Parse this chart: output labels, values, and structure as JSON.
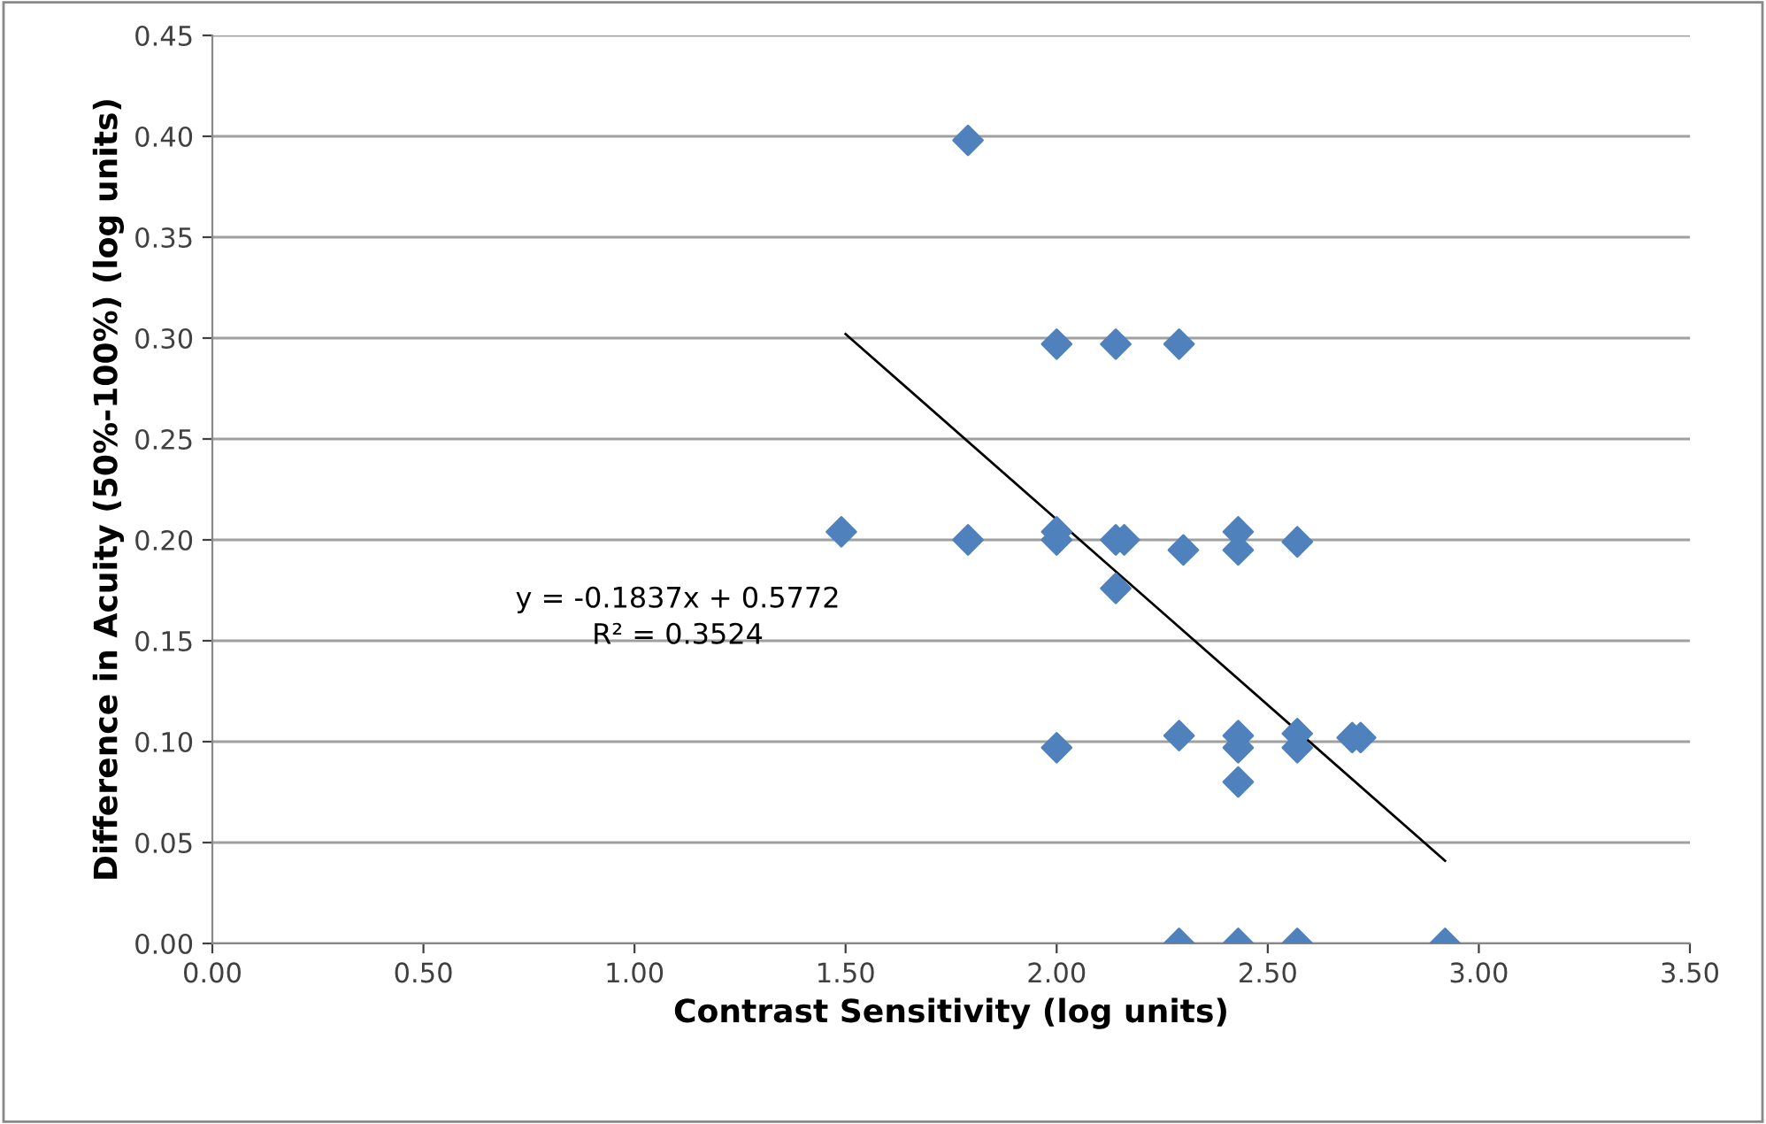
{
  "chart_data": {
    "type": "scatter",
    "xlabel": "Contrast Sensitivity (log units)",
    "ylabel": "Difference in Acuity (50%-100%) (log units)",
    "xlim": [
      0,
      3.5
    ],
    "xticks": [
      {
        "value": 0,
        "label": "0.00"
      },
      {
        "value": 0.5,
        "label": "0.50"
      },
      {
        "value": 1,
        "label": "1.00"
      },
      {
        "value": 1.5,
        "label": "1.50"
      },
      {
        "value": 2,
        "label": "2.00"
      },
      {
        "value": 2.5,
        "label": "2.50"
      },
      {
        "value": 3,
        "label": "3.00"
      },
      {
        "value": 3.5,
        "label": "3.50"
      }
    ],
    "ylim": [
      0,
      0.45
    ],
    "yticks": [
      {
        "value": 0,
        "label": "0.00"
      },
      {
        "value": 0.05,
        "label": "0.05"
      },
      {
        "value": 0.1,
        "label": "0.10"
      },
      {
        "value": 0.15,
        "label": "0.15"
      },
      {
        "value": 0.2,
        "label": "0.20"
      },
      {
        "value": 0.25,
        "label": "0.25"
      },
      {
        "value": 0.3,
        "label": "0.30"
      },
      {
        "value": 0.35,
        "label": "0.35"
      },
      {
        "value": 0.4,
        "label": "0.40"
      },
      {
        "value": 0.45,
        "label": "0.45"
      }
    ],
    "grid": "y",
    "legend": false,
    "marker": "diamond",
    "series": [
      {
        "color": "#4f81bd",
        "x": [
          1.49,
          1.79,
          1.79,
          2.0,
          2.0,
          2.0,
          2.0,
          2.14,
          2.14,
          2.14,
          2.16,
          2.29,
          2.29,
          2.29,
          2.3,
          2.43,
          2.43,
          2.43,
          2.43,
          2.43,
          2.43,
          2.57,
          2.57,
          2.57,
          2.57,
          2.7,
          2.72,
          2.92
        ],
        "values": [
          0.204,
          0.398,
          0.2,
          0.297,
          0.204,
          0.2,
          0.097,
          0.297,
          0.2,
          0.176,
          0.2,
          0.297,
          0.103,
          0.0,
          0.195,
          0.204,
          0.195,
          0.103,
          0.097,
          0.08,
          0.0,
          0.199,
          0.104,
          0.097,
          0.0,
          0.102,
          0.102,
          0.0
        ]
      },
      {
        "type": "line",
        "color": "#000000",
        "marker": "none",
        "line_style": "solid",
        "x": [
          1.5,
          2.92
        ],
        "values": [
          0.302,
          0.041
        ]
      }
    ],
    "annotations": [
      "y = -0.1837x + 0.5772",
      "R² = 0.3524"
    ]
  }
}
